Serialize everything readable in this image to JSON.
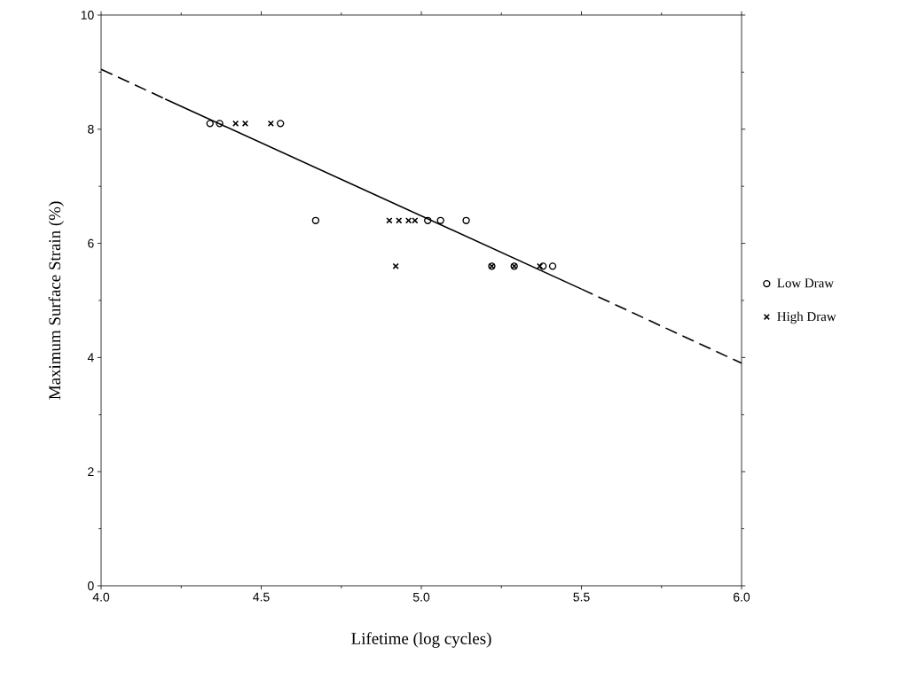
{
  "chart_data": {
    "type": "scatter",
    "xlabel": "Lifetime (log cycles)",
    "ylabel": "Maximum Surface Strain (%)",
    "xlim": [
      4.0,
      6.0
    ],
    "ylim": [
      0,
      10
    ],
    "xticks": [
      {
        "value": 4.0,
        "label": "4.0"
      },
      {
        "value": 4.5,
        "label": "4.5"
      },
      {
        "value": 5.0,
        "label": "5.0"
      },
      {
        "value": 5.5,
        "label": "5.5"
      },
      {
        "value": 6.0,
        "label": "6.0"
      }
    ],
    "yticks": [
      0,
      2,
      4,
      6,
      8,
      10
    ],
    "legend": "right",
    "grid": false,
    "series": [
      {
        "name": "Low Draw",
        "marker": "circle",
        "color": "#000000",
        "x": [
          4.34,
          4.37,
          4.56,
          4.67,
          5.02,
          5.06,
          5.14,
          5.22,
          5.29,
          5.38,
          5.41
        ],
        "values": [
          8.1,
          8.1,
          8.1,
          6.4,
          6.4,
          6.4,
          6.4,
          5.6,
          5.6,
          5.6,
          5.6
        ]
      },
      {
        "name": "High Draw",
        "marker": "cross",
        "color": "#000000",
        "x": [
          4.42,
          4.45,
          4.53,
          4.9,
          4.93,
          4.96,
          4.98,
          4.92,
          5.22,
          5.29,
          5.37
        ],
        "values": [
          8.1,
          8.1,
          8.1,
          6.4,
          6.4,
          6.4,
          6.4,
          5.6,
          5.6,
          5.6,
          5.6
        ]
      },
      {
        "type": "line",
        "line_style": "dashed",
        "color": "#000000",
        "x": [
          4.0,
          4.2
        ],
        "values": [
          9.05,
          8.53
        ]
      },
      {
        "type": "line",
        "line_style": "solid",
        "color": "#000000",
        "x": [
          4.2,
          5.5
        ],
        "values": [
          8.53,
          5.2
        ]
      },
      {
        "type": "line",
        "line_style": "dashed",
        "color": "#000000",
        "x": [
          5.5,
          6.0
        ],
        "values": [
          5.2,
          3.9
        ]
      }
    ]
  }
}
